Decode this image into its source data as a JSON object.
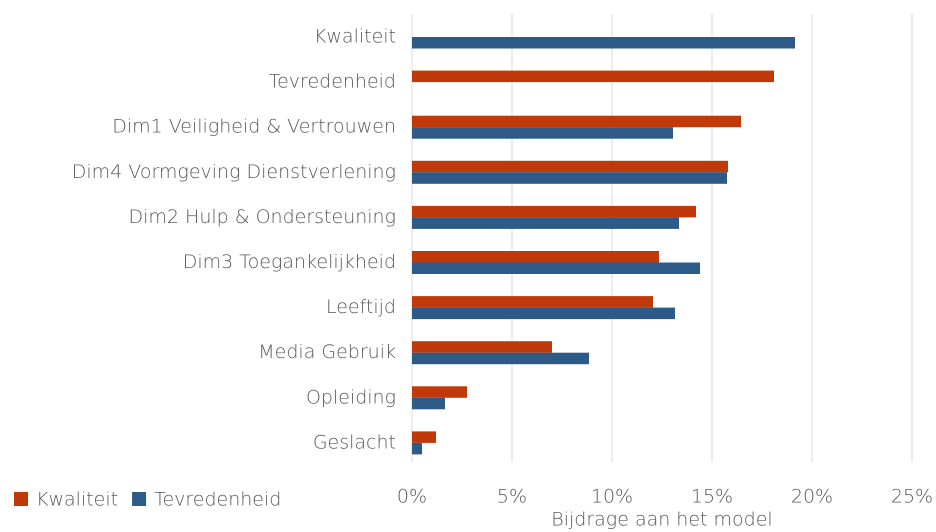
{
  "chart_data": {
    "type": "hbar",
    "xlabel": "Bijdrage aan het model",
    "categories": [
      "Kwaliteit",
      "Tevredenheid",
      "Dim1 Veiligheid & Vertrouwen",
      "Dim4 Vormgeving Dienstverlening",
      "Dim2 Hulp & Ondersteuning",
      "Dim3 Toegankelijkheid",
      "Leeftijd",
      "Media Gebruik",
      "Opleiding",
      "Geslacht"
    ],
    "series": [
      {
        "name": "Kwaliteit",
        "color": "#c0390b",
        "values": [
          null,
          18.1,
          16.45,
          15.8,
          14.2,
          12.35,
          12.05,
          7.0,
          2.75,
          1.2
        ]
      },
      {
        "name": "Tevredenheid",
        "color": "#2e5a87",
        "values": [
          19.15,
          null,
          13.05,
          15.75,
          13.35,
          14.4,
          13.15,
          8.85,
          1.65,
          0.5
        ]
      }
    ],
    "xlim": [
      0,
      25
    ],
    "xticks": [
      {
        "value": 0,
        "label": "0%"
      },
      {
        "value": 5,
        "label": "5%"
      },
      {
        "value": 10,
        "label": "10%"
      },
      {
        "value": 15,
        "label": "15%"
      },
      {
        "value": 20,
        "label": "20%"
      },
      {
        "value": 25,
        "label": "25%"
      }
    ],
    "grid": true,
    "legend": "bottom-left"
  }
}
